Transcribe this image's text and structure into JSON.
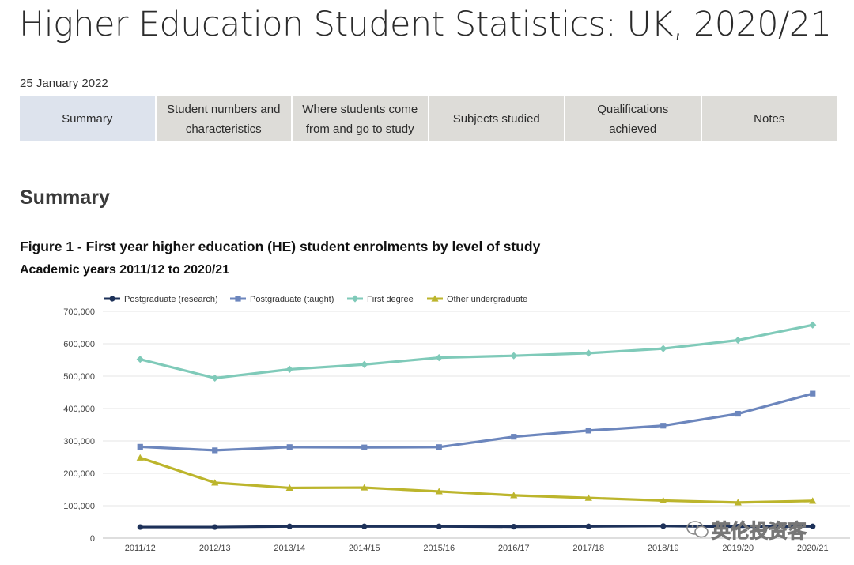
{
  "page": {
    "title": "Higher Education Student Statistics: UK, 2020/21",
    "date": "25 January 2022",
    "tabs": [
      {
        "label": "Summary",
        "active": true
      },
      {
        "label": "Student numbers and characteristics",
        "active": false
      },
      {
        "label": "Where students come from and go to study",
        "active": false
      },
      {
        "label": "Subjects studied",
        "active": false
      },
      {
        "label": "Qualifications achieved",
        "active": false
      },
      {
        "label": "Notes",
        "active": false
      }
    ],
    "section_heading": "Summary",
    "figure_title": "Figure 1 - First year higher education (HE) student enrolments by level of study",
    "figure_subtitle": "Academic years 2011/12 to 2020/21",
    "watermark": {
      "text": "英伦投资客",
      "icon": "wechat-icon"
    }
  },
  "chart_data": {
    "type": "line",
    "categories": [
      "2011/12",
      "2012/13",
      "2013/14",
      "2014/15",
      "2015/16",
      "2016/17",
      "2017/18",
      "2018/19",
      "2019/20",
      "2020/21"
    ],
    "ylim": [
      0,
      700000
    ],
    "yticks": [
      0,
      100000,
      200000,
      300000,
      400000,
      500000,
      600000,
      700000
    ],
    "ytick_labels": [
      "0",
      "100,000",
      "200,000",
      "300,000",
      "400,000",
      "500,000",
      "600,000",
      "700,000"
    ],
    "grid": true,
    "legend_position": "top-left",
    "series": [
      {
        "name": "Postgraduate (research)",
        "color": "#1d3159",
        "marker": "circle",
        "values": [
          34000,
          34000,
          36000,
          36000,
          36000,
          35000,
          36000,
          37000,
          35000,
          36000
        ]
      },
      {
        "name": "Postgraduate (taught)",
        "color": "#6c86bd",
        "marker": "square",
        "values": [
          282000,
          271000,
          281000,
          280000,
          281000,
          313000,
          332000,
          347000,
          384000,
          446000
        ]
      },
      {
        "name": "First degree",
        "color": "#7fcab9",
        "marker": "diamond",
        "values": [
          552000,
          494000,
          521000,
          536000,
          557000,
          563000,
          571000,
          585000,
          611000,
          658000
        ]
      },
      {
        "name": "Other undergraduate",
        "color": "#bcb52c",
        "marker": "triangle",
        "values": [
          248000,
          171000,
          155000,
          156000,
          144000,
          132000,
          124000,
          116000,
          110000,
          115000
        ]
      }
    ]
  }
}
